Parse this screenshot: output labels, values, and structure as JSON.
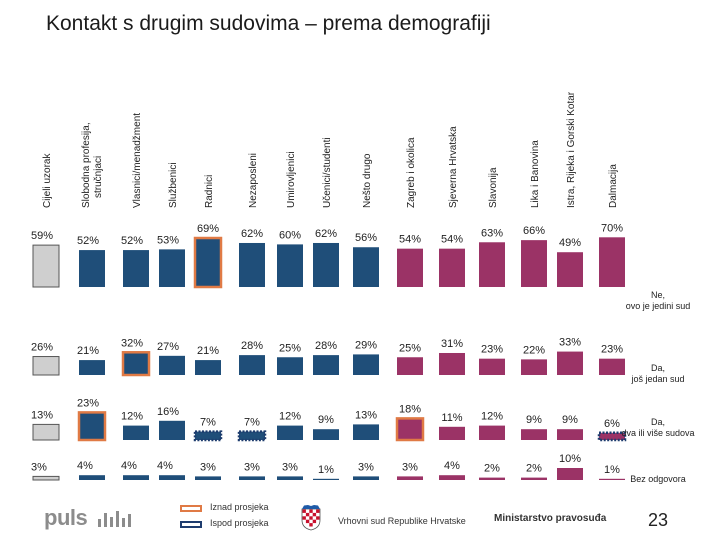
{
  "title": "Kontakt s drugim sudovima – prema demografiji",
  "colors": {
    "total": "#cfcfcf",
    "demographic": "#1f4e79",
    "regional": "#9b3366",
    "above_outline": "#e07a45",
    "below_outline": "#1e3c6e",
    "text": "#222222"
  },
  "chart_data": {
    "type": "bar",
    "title": "Kontakt s drugim sudovima – prema demografiji",
    "categories": [
      "Cijeli uzorak",
      "Slobodna profesija, stručnjaci",
      "Vlasnici/menadžment",
      "Službenici",
      "Radnici",
      "Nezaposleni",
      "Umirovljenici",
      "Učenici/studenti",
      "Nešto drugo",
      "Zagreb i okolica",
      "Sjeverna Hrvatska",
      "Slavonija",
      "Lika i Banovina",
      "Istra, Rijeka i Gorski Kotar",
      "Dalmacija"
    ],
    "groups": [
      "total",
      "demographic",
      "demographic",
      "demographic",
      "demographic",
      "demographic",
      "demographic",
      "demographic",
      "demographic",
      "regional",
      "regional",
      "regional",
      "regional",
      "regional",
      "regional"
    ],
    "series": [
      {
        "name": "Ne, ovo je jedini sud",
        "values": [
          59,
          52,
          52,
          53,
          69,
          62,
          60,
          62,
          56,
          54,
          54,
          63,
          66,
          49,
          70
        ],
        "labels": [
          "59%",
          "52%",
          "52%",
          "53%",
          "69%",
          "62%",
          "60%",
          "62%",
          "56%",
          "54%",
          "54%",
          "63%",
          "66%",
          "49%",
          "70%"
        ],
        "highlight": [
          "none",
          "none",
          "none",
          "none",
          "above",
          "none",
          "none",
          "none",
          "none",
          "none",
          "none",
          "none",
          "none",
          "none",
          "none"
        ]
      },
      {
        "name": "Da, još jedan sud",
        "values": [
          26,
          21,
          32,
          27,
          21,
          28,
          25,
          28,
          29,
          25,
          31,
          23,
          22,
          33,
          23
        ],
        "labels": [
          "26%",
          "21%",
          "32%",
          "27%",
          "21%",
          "28%",
          "25%",
          "28%",
          "29%",
          "25%",
          "31%",
          "23%",
          "22%",
          "33%",
          "23%"
        ],
        "highlight": [
          "none",
          "none",
          "above",
          "none",
          "none",
          "none",
          "none",
          "none",
          "none",
          "none",
          "none",
          "none",
          "none",
          "none",
          "none"
        ]
      },
      {
        "name": "Da, dva ili više sudova",
        "values": [
          13,
          23,
          12,
          16,
          7,
          7,
          12,
          9,
          13,
          18,
          11,
          12,
          9,
          9,
          6
        ],
        "labels": [
          "13%",
          "23%",
          "12%",
          "16%",
          "7%",
          "7%",
          "12%",
          "9%",
          "13%",
          "18%",
          "11%",
          "12%",
          "9%",
          "9%",
          "6%"
        ],
        "highlight": [
          "none",
          "above",
          "none",
          "none",
          "below",
          "below",
          "none",
          "none",
          "none",
          "above",
          "none",
          "none",
          "none",
          "none",
          "below"
        ]
      },
      {
        "name": "Bez odgovora",
        "values": [
          3,
          4,
          4,
          4,
          3,
          3,
          3,
          1,
          3,
          3,
          4,
          2,
          2,
          10,
          1
        ],
        "labels": [
          "3%",
          "4%",
          "4%",
          "4%",
          "3%",
          "3%",
          "3%",
          "1%",
          "3%",
          "3%",
          "4%",
          "2%",
          "2%",
          "10%",
          "1%"
        ],
        "highlight": [
          "none",
          "none",
          "none",
          "none",
          "none",
          "none",
          "none",
          "none",
          "none",
          "none",
          "none",
          "none",
          "none",
          "none",
          "none"
        ]
      }
    ],
    "row_labels": [
      "Ne, ovo je jedini sud",
      "Da, još jedan sud",
      "Da, dva ili više sudova",
      "Bez odgovora"
    ],
    "legend": [
      "Iznad prosjeka",
      "Ispod prosjeka"
    ],
    "units": "%"
  },
  "footer": {
    "logo": "puls",
    "court": "Vrhovni sud Republike Hrvatske",
    "ministry": "Ministarstvo pravosuđa",
    "page_number": "23"
  }
}
